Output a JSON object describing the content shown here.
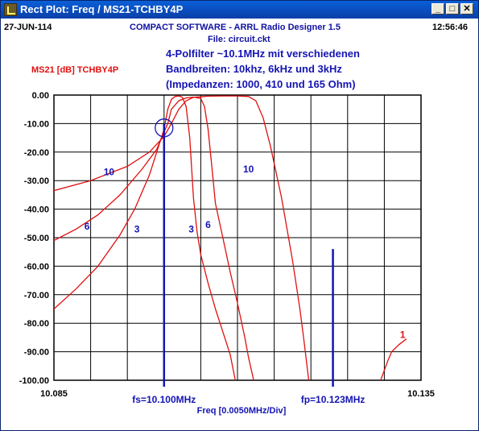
{
  "window": {
    "title": "Rect Plot: Freq / MS21-TCHBY4P",
    "minimize_glyph": "_",
    "maximize_glyph": "□",
    "close_glyph": "✕"
  },
  "header": {
    "date": "27-JUN-114",
    "app": "COMPACT SOFTWARE - ARRL Radio Designer 1.5",
    "time": "12:56:46",
    "file": "File: circuit.ckt"
  },
  "description": {
    "line1": "4-Polfilter  ~10.1MHz mit verschiedenen",
    "line2": "Bandbreiten: 10khz, 6kHz und 3kHz",
    "line3": "(Impedanzen: 1000, 410 und 165 Ohm)"
  },
  "trace_label": "MS21 [dB] TCHBY4P",
  "chart_data": {
    "type": "line",
    "xlabel": "Freq [0.0050MHz/Div]",
    "ylabel": "MS21 [dB] TCHBY4P",
    "xlim": [
      10.085,
      10.135
    ],
    "ylim": [
      -100,
      0
    ],
    "x_start_label": "10.085",
    "x_end_label": "10.135",
    "y_tick_labels": [
      "0.00",
      "-10.00",
      "-20.00",
      "-30.00",
      "-40.00",
      "-50.00",
      "-60.00",
      "-70.00",
      "-80.00",
      "-90.00",
      "-100.00"
    ],
    "y_ticks": [
      0,
      -10,
      -20,
      -30,
      -40,
      -50,
      -60,
      -70,
      -80,
      -90,
      -100
    ],
    "x_divisions": 10,
    "grid": true,
    "trace_color": "#e01010",
    "marker_color": "#1414b4",
    "series": [
      {
        "name": "10",
        "label_x": 10.0925,
        "label_y": -27,
        "label2_x": 10.1115,
        "label2_y": -26,
        "values": [
          [
            10.085,
            -33.5
          ],
          [
            10.09,
            -30
          ],
          [
            10.095,
            -25
          ],
          [
            10.098,
            -20
          ],
          [
            10.1,
            -14.5
          ],
          [
            10.101,
            -10
          ],
          [
            10.102,
            -5
          ],
          [
            10.103,
            -2
          ],
          [
            10.104,
            -0.8
          ],
          [
            10.106,
            -0.4
          ],
          [
            10.108,
            -0.3
          ],
          [
            10.11,
            -0.3
          ],
          [
            10.1115,
            -0.5
          ],
          [
            10.1125,
            -2
          ],
          [
            10.1135,
            -8
          ],
          [
            10.1145,
            -18
          ],
          [
            10.116,
            -36
          ],
          [
            10.1175,
            -58
          ],
          [
            10.1185,
            -75
          ],
          [
            10.119,
            -85
          ],
          [
            10.1197,
            -100
          ]
        ]
      },
      {
        "name": "6",
        "label_x": 10.0895,
        "label_y": -46,
        "label2_x": 10.106,
        "label2_y": -45.5,
        "values": [
          [
            10.085,
            -51
          ],
          [
            10.088,
            -47
          ],
          [
            10.091,
            -42
          ],
          [
            10.094,
            -35
          ],
          [
            10.097,
            -26
          ],
          [
            10.099,
            -19
          ],
          [
            10.1,
            -13
          ],
          [
            10.1005,
            -10
          ],
          [
            10.101,
            -5
          ],
          [
            10.102,
            -2
          ],
          [
            10.103,
            -1
          ],
          [
            10.104,
            -0.7
          ],
          [
            10.105,
            -1.2
          ],
          [
            10.1055,
            -4
          ],
          [
            10.106,
            -12
          ],
          [
            10.1065,
            -25
          ],
          [
            10.107,
            -38
          ],
          [
            10.108,
            -50
          ],
          [
            10.109,
            -62
          ],
          [
            10.11,
            -73
          ],
          [
            10.111,
            -85
          ],
          [
            10.1115,
            -92
          ],
          [
            10.1122,
            -100
          ]
        ]
      },
      {
        "name": "3",
        "label_x": 10.0963,
        "label_y": -47,
        "label2_x": 10.1037,
        "label2_y": -47,
        "values": [
          [
            10.085,
            -75
          ],
          [
            10.088,
            -68
          ],
          [
            10.091,
            -60
          ],
          [
            10.094,
            -49
          ],
          [
            10.096,
            -40
          ],
          [
            10.098,
            -28
          ],
          [
            10.099,
            -20
          ],
          [
            10.1,
            -12
          ],
          [
            10.1005,
            -5
          ],
          [
            10.101,
            -1.5
          ],
          [
            10.1015,
            -0.5
          ],
          [
            10.102,
            -0.3
          ],
          [
            10.1025,
            -0.8
          ],
          [
            10.103,
            -4
          ],
          [
            10.1035,
            -15
          ],
          [
            10.104,
            -36
          ],
          [
            10.1045,
            -48
          ],
          [
            10.105,
            -56
          ],
          [
            10.106,
            -66
          ],
          [
            10.107,
            -75
          ],
          [
            10.108,
            -83
          ],
          [
            10.109,
            -91
          ],
          [
            10.1097,
            -100
          ]
        ]
      },
      {
        "name": "1",
        "label_x": 10.1325,
        "label_y": -84,
        "values": [
          [
            10.1295,
            -100
          ],
          [
            10.1305,
            -93
          ],
          [
            10.131,
            -90
          ],
          [
            10.132,
            -87.5
          ],
          [
            10.133,
            -85.5
          ]
        ]
      }
    ],
    "markers": [
      {
        "label": "fs=10.100MHz",
        "x": 10.1,
        "top_y": -10,
        "circle_y": -11.5
      },
      {
        "label": "fp=10.123MHz",
        "x": 10.123,
        "top_y": -54
      }
    ]
  }
}
